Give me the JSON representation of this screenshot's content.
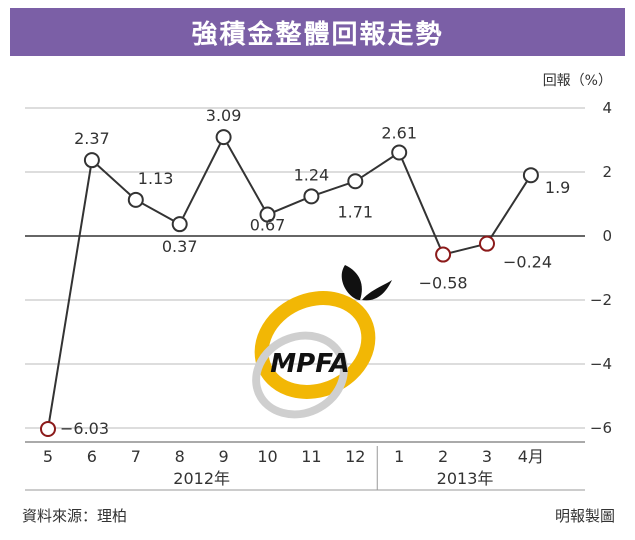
{
  "title": "強積金整體回報走勢",
  "source": "資料來源：理柏",
  "credit": "明報製圖",
  "watermark": "MPFA",
  "colors": {
    "title_bg": "#7b5fa6",
    "line": "#333333",
    "point_fill": "#ffffff",
    "neg_point_stroke": "#8b1a1a",
    "grid": "#bbbbbb",
    "logo_yellow": "#f2b705"
  },
  "chart_data": {
    "type": "line",
    "categories": [
      "5",
      "6",
      "7",
      "8",
      "9",
      "10",
      "11",
      "12",
      "1",
      "2",
      "3",
      "4月"
    ],
    "values": [
      -6.03,
      2.37,
      1.13,
      0.37,
      3.09,
      0.67,
      1.24,
      1.71,
      2.61,
      -0.58,
      -0.24,
      1.9
    ],
    "data_labels": [
      "−6.03",
      "2.37",
      "1.13",
      "0.37",
      "3.09",
      "0.67",
      "1.24",
      "1.71",
      "2.61",
      "−0.58",
      "−0.24",
      "1.9"
    ],
    "year_groups": [
      {
        "label": "2012年",
        "from": 0,
        "to": 7
      },
      {
        "label": "2013年",
        "from": 8,
        "to": 11
      }
    ],
    "ylabel": "回報（%）",
    "ylim": [
      -6,
      4
    ],
    "yticks": [
      4,
      2,
      0,
      -2,
      -4,
      -6
    ],
    "ytick_labels": [
      "4",
      "2",
      "0",
      "−2",
      "−4",
      "−6"
    ],
    "grid": true
  }
}
